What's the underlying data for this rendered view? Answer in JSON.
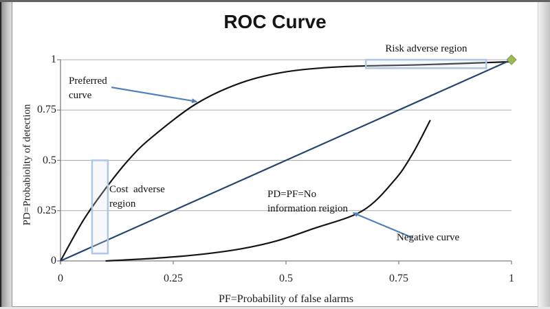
{
  "window": {
    "title": "ROC Curve"
  },
  "chart_data": {
    "type": "line",
    "title": "ROC Curve",
    "xlabel": "PF=Probability of false alarms",
    "ylabel": "PD=Probabiolity of detection",
    "xlim": [
      0,
      1
    ],
    "ylim": [
      0,
      1
    ],
    "grid": "horizontal",
    "legend": "none",
    "xticks": {
      "values": [
        0,
        0.25,
        0.5,
        0.75,
        1
      ],
      "labels": [
        "0",
        "0.25",
        "0.5",
        "0.75",
        "1"
      ]
    },
    "yticks": {
      "values": [
        0,
        0.25,
        0.5,
        0.75,
        1
      ],
      "labels": [
        "0",
        "0.25",
        "0.5",
        "0.75",
        "1"
      ]
    },
    "series": [
      {
        "name": "Preferred curve",
        "color": "#141414",
        "x": [
          0,
          0.05,
          0.1,
          0.15,
          0.2,
          0.3,
          0.4,
          0.5,
          0.62,
          0.8,
          1.0
        ],
        "y": [
          0,
          0.2,
          0.36,
          0.5,
          0.61,
          0.78,
          0.885,
          0.94,
          0.965,
          0.975,
          0.99
        ]
      },
      {
        "name": "PD=PF=No information reigion",
        "color": "#24466e",
        "x": [
          0,
          1
        ],
        "y": [
          0,
          1
        ]
      },
      {
        "name": "Negative curve",
        "color": "#141414",
        "x": [
          0.1,
          0.2,
          0.3,
          0.4,
          0.48,
          0.56,
          0.67,
          0.74,
          0.78,
          0.82
        ],
        "y": [
          0,
          0.012,
          0.03,
          0.06,
          0.1,
          0.16,
          0.25,
          0.4,
          0.53,
          0.7
        ]
      }
    ],
    "marker": {
      "shape": "diamond",
      "x": 1,
      "y": 1,
      "color": "#9bbb59",
      "border": "#7e9a47"
    },
    "regions": [
      {
        "name": "Risk adverse region",
        "x0": 0.677,
        "x1": 0.944,
        "y0": 0.958,
        "y1": 1.0,
        "border": "#aec6e4"
      },
      {
        "name": "Cost adverse region",
        "x0": 0.07,
        "x1": 0.105,
        "y0": 0.037,
        "y1": 0.5,
        "border": "#aec6e4"
      }
    ],
    "arrows": [
      {
        "name": "preferred-curve-arrow",
        "from": [
          0.113,
          0.863
        ],
        "to": [
          0.302,
          0.792
        ],
        "color": "#4f81bd"
      },
      {
        "name": "negative-curve-arrow",
        "from": [
          0.78,
          0.116
        ],
        "to": [
          0.649,
          0.239
        ],
        "color": "#4f81bd"
      }
    ]
  },
  "labels": {
    "title": "ROC Curve",
    "xlabel": "PF=Probability of false alarms",
    "ylabel": "PD=Probabiolity of detection",
    "preferred_line1": "Preferred",
    "preferred_line2": "curve",
    "risk_region": "Risk adverse region",
    "cost_line1": "Cost  adverse",
    "cost_line2": "region",
    "noinfo_line1": "PD=PF=No",
    "noinfo_line2": "information reigion",
    "negative": "Negative curve"
  },
  "colors": {
    "curve_black": "#141414",
    "diagonal_navy": "#24466e",
    "arrow_blue": "#4f81bd",
    "region_border": "#aec6e4",
    "diamond_green": "#9bbb59",
    "gridline": "#ababab",
    "axis": "#7f7f7f"
  }
}
